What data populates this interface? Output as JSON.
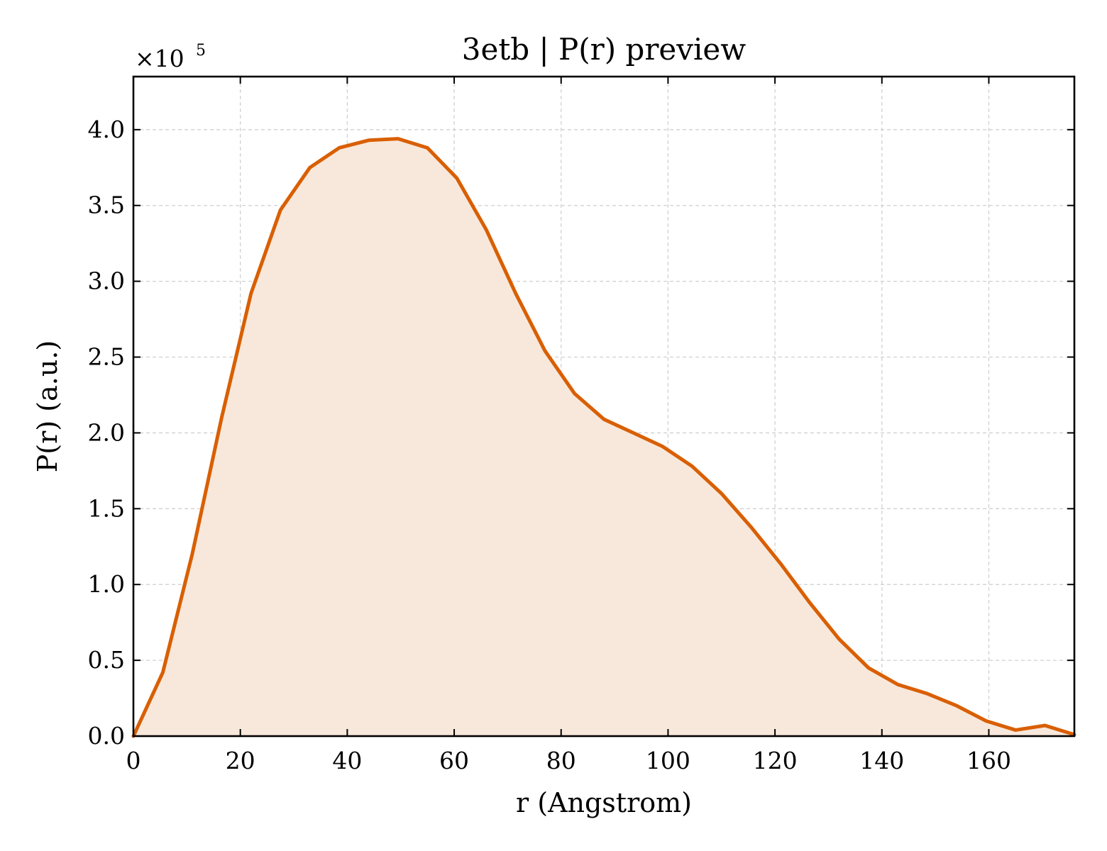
{
  "chart_data": {
    "type": "area",
    "title": "3etb | P(r) preview",
    "xlabel": "r (Angstrom)",
    "ylabel": "P(r) (a.u.)",
    "y_multiplier_label": "×10",
    "y_multiplier_exponent": "5",
    "xlim": [
      0,
      176
    ],
    "ylim": [
      0,
      4.35
    ],
    "xticks": [
      0,
      20,
      40,
      60,
      80,
      100,
      120,
      140,
      160
    ],
    "xtick_labels": [
      "0",
      "20",
      "40",
      "60",
      "80",
      "100",
      "120",
      "140",
      "160"
    ],
    "yticks": [
      0.0,
      0.5,
      1.0,
      1.5,
      2.0,
      2.5,
      3.0,
      3.5,
      4.0
    ],
    "ytick_labels": [
      "0.0",
      "0.5",
      "1.0",
      "1.5",
      "2.0",
      "2.5",
      "3.0",
      "3.5",
      "4.0"
    ],
    "grid": true,
    "line_color": "#d95f02",
    "fill_color": "#f8e8dc",
    "series": [
      {
        "x": [
          0,
          5.5,
          11,
          16.5,
          22,
          27.5,
          33,
          38.5,
          44,
          49.5,
          55,
          60.5,
          66,
          71.5,
          77,
          82.5,
          88,
          93.5,
          99,
          104.5,
          110,
          115.5,
          121,
          126.5,
          132,
          137.5,
          143,
          148.5,
          154,
          159.5,
          165,
          170.5,
          176
        ],
        "y": [
          0.0,
          0.42,
          1.2,
          2.1,
          2.92,
          3.47,
          3.75,
          3.88,
          3.93,
          3.94,
          3.88,
          3.68,
          3.34,
          2.92,
          2.54,
          2.26,
          2.09,
          2.0,
          1.91,
          1.78,
          1.6,
          1.38,
          1.14,
          0.88,
          0.64,
          0.45,
          0.34,
          0.28,
          0.2,
          0.1,
          0.04,
          0.07,
          0.01
        ]
      }
    ]
  }
}
